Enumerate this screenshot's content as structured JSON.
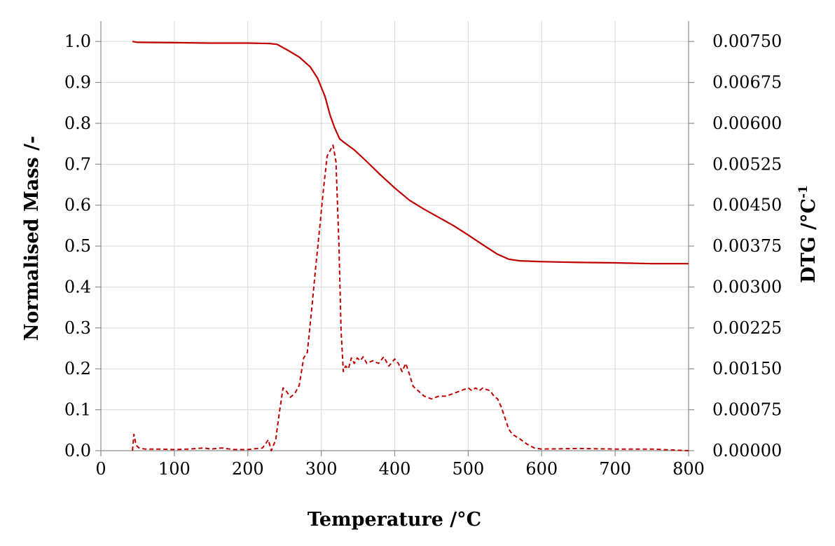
{
  "chart_data": {
    "type": "line",
    "title": "",
    "xlabel": "Temperature /°C",
    "ylabel_left": "Normalised Mass /-",
    "ylabel_right_main": "DTG  /°C",
    "ylabel_right_sup": "-1",
    "xlim": [
      0,
      800
    ],
    "ylim_left": [
      0,
      1.05
    ],
    "ylim_right": [
      0,
      0.007875
    ],
    "x_ticks": [
      "0",
      "100",
      "200",
      "300",
      "400",
      "500",
      "600",
      "700",
      "800"
    ],
    "y_left_ticks": [
      "0.0",
      "0.1",
      "0.2",
      "0.3",
      "0.4",
      "0.5",
      "0.6",
      "0.7",
      "0.8",
      "0.9",
      "1.0"
    ],
    "y_right_ticks": [
      "0.00000",
      "0.00075",
      "0.00150",
      "0.00225",
      "0.00300",
      "0.00375",
      "0.00450",
      "0.00525",
      "0.00600",
      "0.00675",
      "0.00750"
    ],
    "grid": true,
    "line_color": "#c00000",
    "series": [
      {
        "axis": "left",
        "style": "solid",
        "x": [
          43,
          50,
          100,
          150,
          200,
          230,
          240,
          245,
          255,
          270,
          285,
          295,
          305,
          312,
          318,
          325,
          332,
          345,
          360,
          380,
          400,
          420,
          440,
          460,
          480,
          500,
          520,
          540,
          555,
          570,
          600,
          650,
          700,
          750,
          800
        ],
        "y": [
          1.0,
          0.998,
          0.997,
          0.996,
          0.996,
          0.995,
          0.993,
          0.988,
          0.978,
          0.962,
          0.938,
          0.91,
          0.866,
          0.82,
          0.79,
          0.762,
          0.752,
          0.735,
          0.71,
          0.675,
          0.642,
          0.612,
          0.59,
          0.57,
          0.55,
          0.527,
          0.503,
          0.48,
          0.468,
          0.464,
          0.462,
          0.46,
          0.459,
          0.457,
          0.457
        ]
      },
      {
        "axis": "right",
        "style": "dashed",
        "x": [
          43,
          45,
          48,
          52,
          60,
          80,
          100,
          120,
          140,
          150,
          165,
          180,
          200,
          220,
          228,
          232,
          238,
          243,
          248,
          252,
          258,
          264,
          270,
          276,
          281,
          287,
          292,
          298,
          303,
          308,
          312,
          316,
          320,
          324,
          327,
          330,
          333,
          337,
          341,
          345,
          349,
          353,
          357,
          362,
          370,
          378,
          385,
          392,
          400,
          405,
          410,
          415,
          420,
          425,
          440,
          450,
          460,
          470,
          480,
          490,
          500,
          505,
          510,
          515,
          520,
          525,
          530,
          535,
          540,
          545,
          550,
          555,
          560,
          570,
          580,
          590,
          600,
          650,
          700,
          750,
          800
        ],
        "y": [
          0.0,
          0.0003,
          0.0001,
          5e-05,
          3e-05,
          3e-05,
          2e-05,
          3e-05,
          5e-05,
          3e-05,
          5e-05,
          2e-05,
          2e-05,
          5e-05,
          0.0002,
          0.0,
          0.0002,
          0.0007,
          0.00115,
          0.0011,
          0.00098,
          0.00105,
          0.0012,
          0.0017,
          0.0018,
          0.0026,
          0.0033,
          0.0041,
          0.0048,
          0.0054,
          0.0055,
          0.0056,
          0.0053,
          0.0038,
          0.0022,
          0.00145,
          0.00155,
          0.0015,
          0.0017,
          0.0016,
          0.0017,
          0.00165,
          0.00172,
          0.0016,
          0.00165,
          0.0016,
          0.00172,
          0.00155,
          0.00168,
          0.0016,
          0.00145,
          0.0016,
          0.0014,
          0.00118,
          0.001,
          0.00095,
          0.001,
          0.001,
          0.00105,
          0.0011,
          0.00115,
          0.0011,
          0.00115,
          0.0011,
          0.00115,
          0.00112,
          0.0011,
          0.001,
          0.00095,
          0.0008,
          0.0006,
          0.0004,
          0.0003,
          0.00022,
          0.00012,
          5e-05,
          3e-05,
          4e-05,
          3e-05,
          3e-05,
          0.0
        ]
      }
    ]
  }
}
